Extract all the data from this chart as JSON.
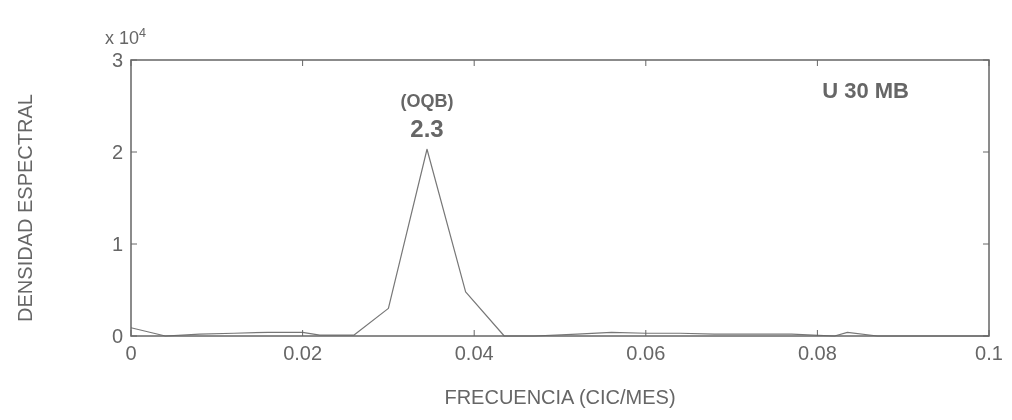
{
  "chart_data": {
    "type": "line",
    "xlabel": "FRECUENCIA (CIC/MES)",
    "ylabel": "DENSIDAD ESPECTRAL",
    "annotations": [
      "x 10$^{4}$",
      {
        "text": "(OQB)",
        "x": 0.0345,
        "y": 2.03
      },
      {
        "text": "2.3",
        "x": 0.0345,
        "y": 2.03
      },
      "U 30 MB"
    ],
    "x": [
      0,
      0.004,
      0.008,
      0.012,
      0.016,
      0.02,
      0.022,
      0.026,
      0.03,
      0.0345,
      0.039,
      0.0435,
      0.047,
      0.052,
      0.056,
      0.06,
      0.064,
      0.068,
      0.073,
      0.077,
      0.082,
      0.0835,
      0.087,
      0.1
    ],
    "series": [
      {
        "color": "#777777",
        "values": [
          0.09,
          0,
          0.02,
          0.03,
          0.04,
          0.04,
          0.01,
          0.01,
          0.3,
          2.03,
          0.48,
          0,
          0,
          0.02,
          0.04,
          0.03,
          0.03,
          0.02,
          0.02,
          0.02,
          0,
          0.04,
          0,
          0
        ]
      }
    ],
    "xlim": [
      0,
      0.1
    ],
    "xticks": [
      0,
      0.02,
      0.04,
      0.06,
      0.08,
      0.1
    ],
    "ylim": [
      0,
      3
    ],
    "yticks": [
      0,
      1,
      2,
      3
    ],
    "grid": false,
    "marker": "none",
    "line_style": "solid"
  }
}
